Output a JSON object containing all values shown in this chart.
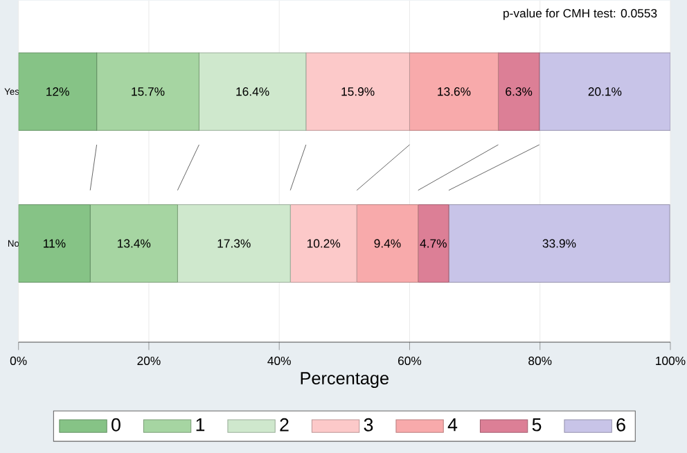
{
  "chart_data": {
    "type": "bar",
    "orientation": "horizontal",
    "stacked": true,
    "categories": [
      "Yes",
      "No"
    ],
    "series": [
      {
        "name": "0",
        "color": "#86c386",
        "values": [
          12,
          11
        ],
        "value_labels": [
          "12%",
          "11%"
        ]
      },
      {
        "name": "1",
        "color": "#a6d5a2",
        "values": [
          15.7,
          13.4
        ],
        "value_labels": [
          "15.7%",
          "13.4%"
        ]
      },
      {
        "name": "2",
        "color": "#cfe8cd",
        "values": [
          16.4,
          17.3
        ],
        "value_labels": [
          "16.4%",
          "17.3%"
        ]
      },
      {
        "name": "3",
        "color": "#fcc9c9",
        "values": [
          15.9,
          10.2
        ],
        "value_labels": [
          "15.9%",
          "10.2%"
        ]
      },
      {
        "name": "4",
        "color": "#f8aaab",
        "values": [
          13.6,
          9.4
        ],
        "value_labels": [
          "13.6%",
          "9.4%"
        ]
      },
      {
        "name": "5",
        "color": "#dc7f96",
        "values": [
          6.3,
          4.7
        ],
        "value_labels": [
          "6.3%",
          "4.7%"
        ]
      },
      {
        "name": "6",
        "color": "#c8c4e8",
        "values": [
          20.1,
          33.9
        ],
        "value_labels": [
          "20.1%",
          "33.9%"
        ]
      }
    ],
    "xlim": [
      0,
      100
    ],
    "xticks": [
      {
        "value": 0,
        "label": "0%"
      },
      {
        "value": 20,
        "label": "20%"
      },
      {
        "value": 40,
        "label": "40%"
      },
      {
        "value": 60,
        "label": "60%"
      },
      {
        "value": 80,
        "label": "80%"
      },
      {
        "value": 100,
        "label": "100%"
      }
    ],
    "xlabel": "Percentage",
    "annotations": [
      "p-value for CMH test: 0.0553"
    ],
    "grid": "x",
    "legend": "bottom"
  }
}
